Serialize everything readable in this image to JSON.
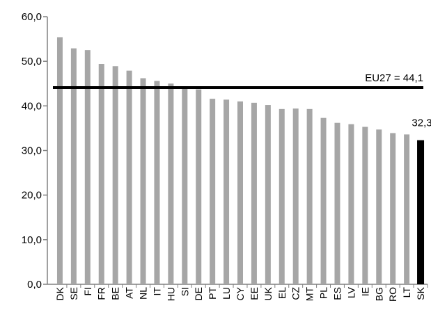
{
  "chart_data": {
    "type": "bar",
    "title": "",
    "xlabel": "",
    "ylabel": "",
    "ylim": [
      0,
      60
    ],
    "y_ticks": [
      "0,0",
      "10,0",
      "20,0",
      "30,0",
      "40,0",
      "50,0",
      "60,0"
    ],
    "grid": false,
    "categories": [
      "DK",
      "SE",
      "FI",
      "FR",
      "BE",
      "AT",
      "NL",
      "IT",
      "HU",
      "SI",
      "DE",
      "PT",
      "LU",
      "CY",
      "EE",
      "UK",
      "EL",
      "CZ",
      "MT",
      "PL",
      "ES",
      "LV",
      "IE",
      "BG",
      "RO",
      "LT",
      "SK"
    ],
    "values": [
      55.4,
      52.9,
      52.5,
      49.4,
      48.9,
      47.9,
      46.2,
      45.6,
      45.0,
      44.0,
      43.7,
      41.6,
      41.4,
      41.0,
      40.7,
      40.2,
      39.3,
      39.4,
      39.3,
      37.3,
      36.2,
      35.9,
      35.3,
      34.7,
      33.9,
      33.6,
      32.3
    ],
    "highlight": {
      "category": "SK",
      "value_label": "32,3",
      "color": "#000000"
    },
    "reference_line": {
      "value": 44.1,
      "label": "EU27 = 44,1",
      "color": "#000000"
    },
    "colors": {
      "bar": "#a6a6a6",
      "highlight": "#000000",
      "axis": "#808080"
    }
  }
}
